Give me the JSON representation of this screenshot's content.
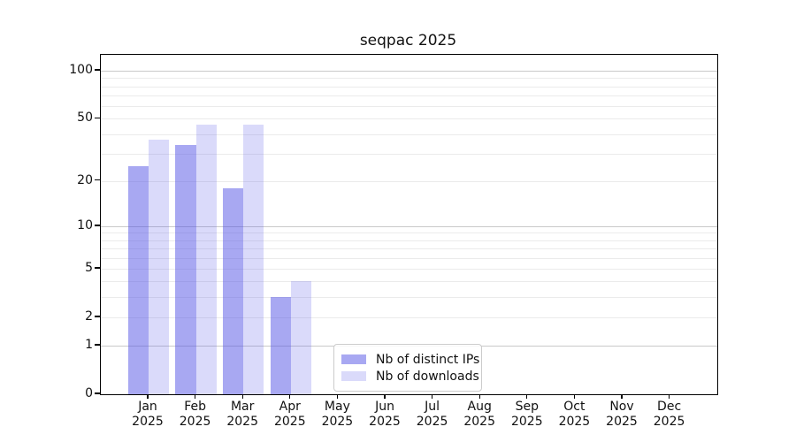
{
  "chart_data": {
    "type": "bar",
    "title": "seqpac 2025",
    "year_label": "2025",
    "months": [
      "Jan",
      "Feb",
      "Mar",
      "Apr",
      "May",
      "Jun",
      "Jul",
      "Aug",
      "Sep",
      "Oct",
      "Nov",
      "Dec"
    ],
    "categories": [
      "Jan 2025",
      "Feb 2025",
      "Mar 2025",
      "Apr 2025",
      "May 2025",
      "Jun 2025",
      "Jul 2025",
      "Aug 2025",
      "Sep 2025",
      "Oct 2025",
      "Nov 2025",
      "Dec 2025"
    ],
    "series": [
      {
        "name": "Nb of distinct IPs",
        "color": "rgba(85,85,230,0.51)",
        "solid_color": "#a8a8f4",
        "values": [
          25,
          34,
          18,
          3,
          0,
          0,
          0,
          0,
          0,
          0,
          0,
          0
        ]
      },
      {
        "name": "Nb of downloads",
        "color": "rgba(85,85,230,0.22)",
        "solid_color": "#dadaf8",
        "values": [
          37,
          46,
          46,
          4,
          0,
          0,
          0,
          0,
          0,
          0,
          0,
          0
        ]
      }
    ],
    "yscale": "log1p",
    "ylim": [
      0,
      127
    ],
    "y_ticks": [
      100,
      50,
      20,
      10,
      5,
      2,
      1,
      0
    ],
    "grid": true,
    "legend_position": "lower-center",
    "colors": {
      "grid_major": "#c9c9c9",
      "grid_minor": "#ebebeb",
      "axis": "#000000",
      "text": "#111111",
      "background": "#ffffff"
    }
  }
}
